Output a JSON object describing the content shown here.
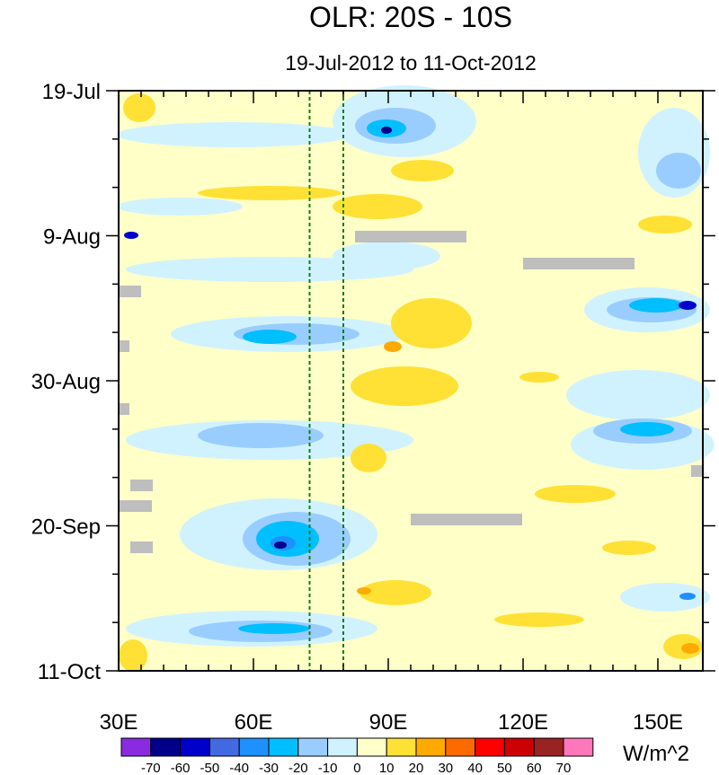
{
  "chart_data": {
    "type": "heatmap",
    "title": "OLR: 20S - 10S",
    "subtitle": "19-Jul-2012 to 11-Oct-2012",
    "x_axis": {
      "range": [
        30,
        160
      ],
      "ticks": [
        {
          "value": 30,
          "label": "30E"
        },
        {
          "value": 60,
          "label": "60E"
        },
        {
          "value": 90,
          "label": "90E"
        },
        {
          "value": 120,
          "label": "120E"
        },
        {
          "value": 150,
          "label": "150E"
        }
      ]
    },
    "y_axis": {
      "range_days": [
        0,
        84
      ],
      "ticks": [
        {
          "day": 0,
          "label": "19-Jul"
        },
        {
          "day": 21,
          "label": "9-Aug"
        },
        {
          "day": 42,
          "label": "30-Aug"
        },
        {
          "day": 63,
          "label": "20-Sep"
        },
        {
          "day": 84,
          "label": "11-Oct"
        }
      ]
    },
    "reference_lines_lon": [
      72.5,
      80
    ],
    "colorbar": {
      "units": "W/m^2",
      "labels": [
        "-70",
        "-60",
        "-50",
        "-40",
        "-30",
        "-20",
        "-10",
        "0",
        "10",
        "20",
        "30",
        "40",
        "50",
        "60",
        "70"
      ],
      "colors": [
        "#8A2BE2",
        "#00008B",
        "#0000CD",
        "#4169E1",
        "#1E90FF",
        "#00BFFF",
        "#9ACDFF",
        "#D0F2FF",
        "#FFFFC8",
        "#FFE135",
        "#FFAA00",
        "#FF6A00",
        "#FF0000",
        "#CC0000",
        "#992222",
        "#FF77BB"
      ]
    },
    "grid": false
  }
}
